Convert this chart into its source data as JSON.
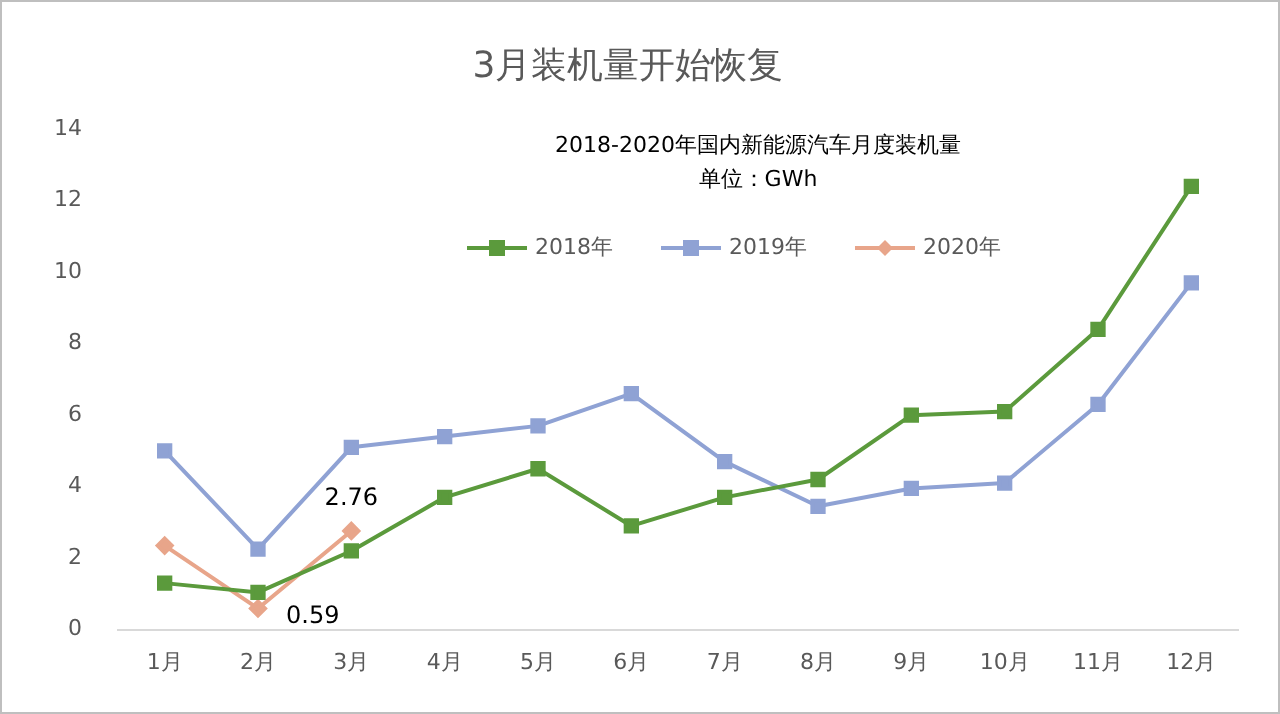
{
  "chart_data": {
    "type": "line",
    "title": "3月装机量开始恢复",
    "subtitle": "2018-2020年国内新能源汽车月度装机量",
    "annotations": [
      "单位：GWh"
    ],
    "categories": [
      "1月",
      "2月",
      "3月",
      "4月",
      "5月",
      "6月",
      "7月",
      "8月",
      "9月",
      "10月",
      "11月",
      "12月"
    ],
    "series": [
      {
        "name": "2018年",
        "color": "#5b9a3c",
        "marker": "square",
        "values": [
          1.3,
          1.04,
          2.2,
          3.7,
          4.5,
          2.9,
          3.7,
          4.2,
          6.0,
          6.1,
          8.4,
          12.4
        ]
      },
      {
        "name": "2019年",
        "color": "#8fa2d4",
        "marker": "square",
        "values": [
          5.0,
          2.25,
          5.1,
          5.4,
          5.7,
          6.6,
          4.7,
          3.45,
          3.95,
          4.1,
          6.3,
          9.7
        ]
      },
      {
        "name": "2020年",
        "color": "#e8a58a",
        "marker": "diamond",
        "values": [
          2.35,
          0.59,
          2.76,
          null,
          null,
          null,
          null,
          null,
          null,
          null,
          null,
          null
        ],
        "value_labels": [
          null,
          "0.59",
          "2.76",
          null,
          null,
          null,
          null,
          null,
          null,
          null,
          null,
          null
        ]
      }
    ],
    "ylim": [
      0,
      14
    ],
    "yticks": [
      0,
      2,
      4,
      6,
      8,
      10,
      12,
      14
    ],
    "grid": false,
    "legend": "top",
    "line_style": "solid"
  }
}
